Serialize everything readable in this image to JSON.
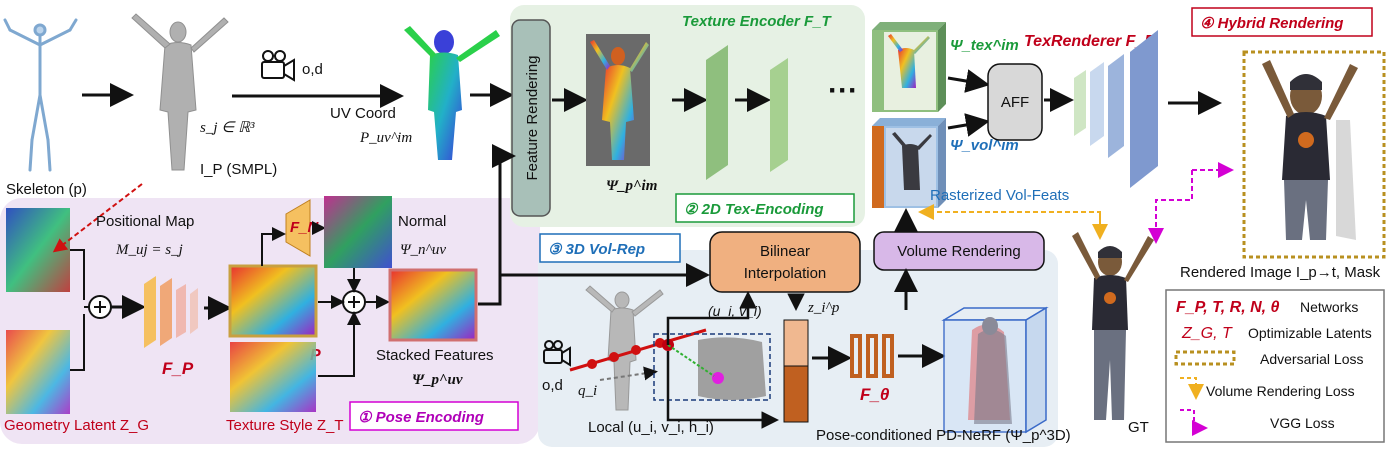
{
  "colors": {
    "pose_bg": "#efe4f4",
    "tex_bg": "#e6f1e4",
    "vol_bg": "#e7eef4",
    "red": "#c0001a",
    "green": "#1a9a3a",
    "blue": "#1f6fb8",
    "magenta": "#d400d4",
    "orange": "#f0b020"
  },
  "labels": {
    "skeleton": "Skeleton (p)",
    "sj": "s_j ∈ ℝ³",
    "ip": "I_P (SMPL)",
    "od_top": "o,d",
    "uv_coord": "UV Coord",
    "p_uv_im": "P_uv^im",
    "feature_rendering": "Feature Rendering",
    "psi_p_im": "Ψ_p^im",
    "texture_encoder": "Texture Encoder F_T",
    "dots": "···",
    "tex_encoding": "② 2D Tex-Encoding",
    "psi_tex": "Ψ_tex^im",
    "psi_vol": "Ψ_vol^im",
    "aff": "AFF",
    "texrenderer": "TexRenderer F_R",
    "hybrid": "④ Hybrid Rendering",
    "rasterized": "Rasterized Vol-Feats",
    "positional_map": "Positional Map",
    "m_uj": "M_uj = s_j",
    "fn": "F_N",
    "normal": "Normal",
    "psi_n": "Ψ_n^uv",
    "fp": "F_P",
    "p_bold": "P",
    "stacked": "Stacked Features",
    "psi_p_uv": "Ψ_p^uv",
    "geometry_latent": "Geometry Latent Z_G",
    "texture_style": "Texture Style Z_T",
    "pose_encoding": "① Pose Encoding",
    "vol_rep": "③ 3D Vol-Rep",
    "bilinear1": "Bilinear",
    "bilinear2": "Interpolation",
    "volume_rendering": "Volume Rendering",
    "uivi": "(u_i, v_i)",
    "zip": "z_i^p",
    "od_bottom": "o,d",
    "qi": "q_i",
    "local": "Local (u_i, v_i, h_i)",
    "ftheta": "F_θ",
    "pdnerf": "Pose-conditioned PD-NeRF (Ψ_p^3D)",
    "gt": "GT",
    "rendered": "Rendered Image I_p→t, Mask"
  },
  "legend": {
    "networks_sym": "F_P, T, R, N, θ",
    "networks": "Networks",
    "latents_sym": "Z_G, T",
    "latents": "Optimizable Latents",
    "adversarial": "Adversarial Loss",
    "volume": "Volume Rendering Loss",
    "vgg": "VGG Loss"
  }
}
